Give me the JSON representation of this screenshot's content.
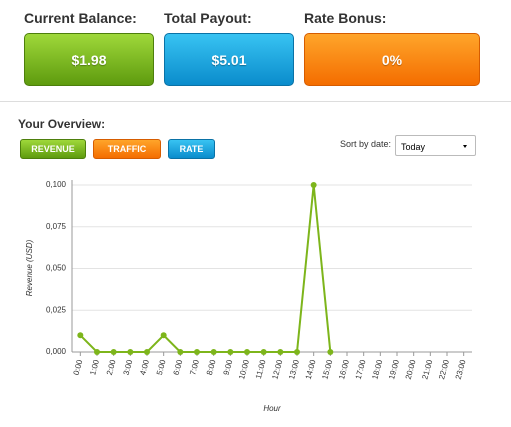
{
  "cards": [
    {
      "label": "Current Balance:",
      "value": "$1.98"
    },
    {
      "label": "Total Payout:",
      "value": "$5.01"
    },
    {
      "label": "Rate Bonus:",
      "value": "0%"
    }
  ],
  "overview": {
    "title": "Your Overview:",
    "tabs": [
      "REVENUE",
      "TRAFFIC",
      "RATE"
    ],
    "sort_label": "Sort by date:",
    "sort_value": "Today"
  },
  "chart_data": {
    "type": "line",
    "x_label": "Hour",
    "y_label": "Revenue (USD)",
    "categories": [
      "0:00",
      "1:00",
      "2:00",
      "3:00",
      "4:00",
      "5:00",
      "6:00",
      "7:00",
      "8:00",
      "9:00",
      "10:00",
      "11:00",
      "12:00",
      "13:00",
      "14:00",
      "15:00",
      "16:00",
      "17:00",
      "18:00",
      "19:00",
      "20:00",
      "21:00",
      "22:00",
      "23:00"
    ],
    "series": [
      {
        "name": "Revenue",
        "color": "#7db51b",
        "values": [
          0.01,
          0,
          0,
          0,
          0,
          0.01,
          0,
          0,
          0,
          0,
          0,
          0,
          0,
          0,
          0.1,
          0,
          null,
          null,
          null,
          null,
          null,
          null,
          null,
          null
        ]
      }
    ],
    "ylim": [
      0,
      0.1
    ],
    "yticks": [
      {
        "value": 0,
        "label": "0,000"
      },
      {
        "value": 0.025,
        "label": "0,025"
      },
      {
        "value": 0.05,
        "label": "0,050"
      },
      {
        "value": 0.075,
        "label": "0,075"
      },
      {
        "value": 0.1,
        "label": "0,100"
      }
    ],
    "grid": true
  }
}
